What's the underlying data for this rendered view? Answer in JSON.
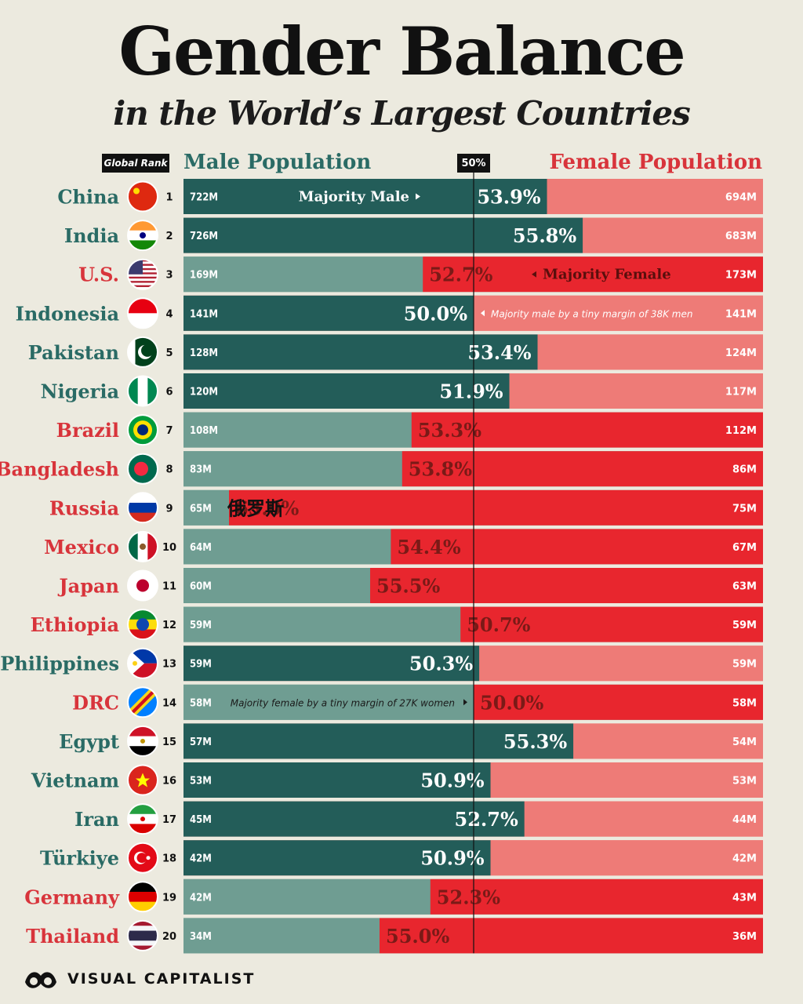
{
  "header": {
    "title": "Gender Balance",
    "subtitle": "in the World’s Largest Countries",
    "rank_label": "Global Rank",
    "male_label": "Male Population",
    "female_label": "Female Population",
    "midline_label": "50%"
  },
  "footer": {
    "brand": "VISUAL CAPITALIST"
  },
  "colors": {
    "male_strong": "#235d59",
    "male_light": "#6f9d92",
    "female_strong": "#e8262e",
    "female_light": "#ee7b77",
    "male_text": "#2a6b65",
    "female_text": "#d8343b"
  },
  "chart_data": {
    "type": "bar",
    "title": "Gender Balance",
    "subtitle": "in the World’s Largest Countries",
    "xlabel": "",
    "ylabel": "",
    "series": [
      {
        "name": "Male Population",
        "unit": "M"
      },
      {
        "name": "Female Population",
        "unit": "M"
      }
    ],
    "rows": [
      {
        "country": "China",
        "rank": "1",
        "male": "722M",
        "female": "694M",
        "share": 53.9,
        "share_label": "53.9%",
        "majority": "male",
        "note": "Majority Male"
      },
      {
        "country": "India",
        "rank": "2",
        "male": "726M",
        "female": "683M",
        "share": 55.8,
        "share_label": "55.8%",
        "majority": "male"
      },
      {
        "country": "U.S.",
        "rank": "3",
        "male": "169M",
        "female": "173M",
        "share": 52.7,
        "share_label": "52.7%",
        "majority": "female",
        "note": "Majority Female"
      },
      {
        "country": "Indonesia",
        "rank": "4",
        "male": "141M",
        "female": "141M",
        "share": 50.0,
        "share_label": "50.0%",
        "majority": "male",
        "note": "Majority male by a tiny margin of 38K men"
      },
      {
        "country": "Pakistan",
        "rank": "5",
        "male": "128M",
        "female": "124M",
        "share": 53.4,
        "share_label": "53.4%",
        "majority": "male"
      },
      {
        "country": "Nigeria",
        "rank": "6",
        "male": "120M",
        "female": "117M",
        "share": 51.9,
        "share_label": "51.9%",
        "majority": "male"
      },
      {
        "country": "Brazil",
        "rank": "7",
        "male": "108M",
        "female": "112M",
        "share": 53.3,
        "share_label": "53.3%",
        "majority": "female"
      },
      {
        "country": "Bangladesh",
        "rank": "8",
        "male": "83M",
        "female": "86M",
        "share": 53.8,
        "share_label": "53.8%",
        "majority": "female"
      },
      {
        "country": "Russia",
        "rank": "9",
        "male": "65M",
        "female": "75M",
        "share": 63.0,
        "share_label": "63.0%",
        "majority": "female",
        "extra": "俄罗斯"
      },
      {
        "country": "Mexico",
        "rank": "10",
        "male": "64M",
        "female": "67M",
        "share": 54.4,
        "share_label": "54.4%",
        "majority": "female"
      },
      {
        "country": "Japan",
        "rank": "11",
        "male": "60M",
        "female": "63M",
        "share": 55.5,
        "share_label": "55.5%",
        "majority": "female"
      },
      {
        "country": "Ethiopia",
        "rank": "12",
        "male": "59M",
        "female": "59M",
        "share": 50.7,
        "share_label": "50.7%",
        "majority": "female"
      },
      {
        "country": "Philippines",
        "rank": "13",
        "male": "59M",
        "female": "59M",
        "share": 50.3,
        "share_label": "50.3%",
        "majority": "male"
      },
      {
        "country": "DRC",
        "rank": "14",
        "male": "58M",
        "female": "58M",
        "share": 50.0,
        "share_label": "50.0%",
        "majority": "female",
        "note": "Majority female by a tiny margin of 27K women"
      },
      {
        "country": "Egypt",
        "rank": "15",
        "male": "57M",
        "female": "54M",
        "share": 55.3,
        "share_label": "55.3%",
        "majority": "male"
      },
      {
        "country": "Vietnam",
        "rank": "16",
        "male": "53M",
        "female": "53M",
        "share": 50.9,
        "share_label": "50.9%",
        "majority": "male"
      },
      {
        "country": "Iran",
        "rank": "17",
        "male": "45M",
        "female": "44M",
        "share": 52.7,
        "share_label": "52.7%",
        "majority": "male"
      },
      {
        "country": "Türkiye",
        "rank": "18",
        "male": "42M",
        "female": "42M",
        "share": 50.9,
        "share_label": "50.9%",
        "majority": "male"
      },
      {
        "country": "Germany",
        "rank": "19",
        "male": "42M",
        "female": "43M",
        "share": 52.3,
        "share_label": "52.3%",
        "majority": "female"
      },
      {
        "country": "Thailand",
        "rank": "20",
        "male": "34M",
        "female": "36M",
        "share": 55.0,
        "share_label": "55.0%",
        "majority": "female"
      }
    ]
  }
}
